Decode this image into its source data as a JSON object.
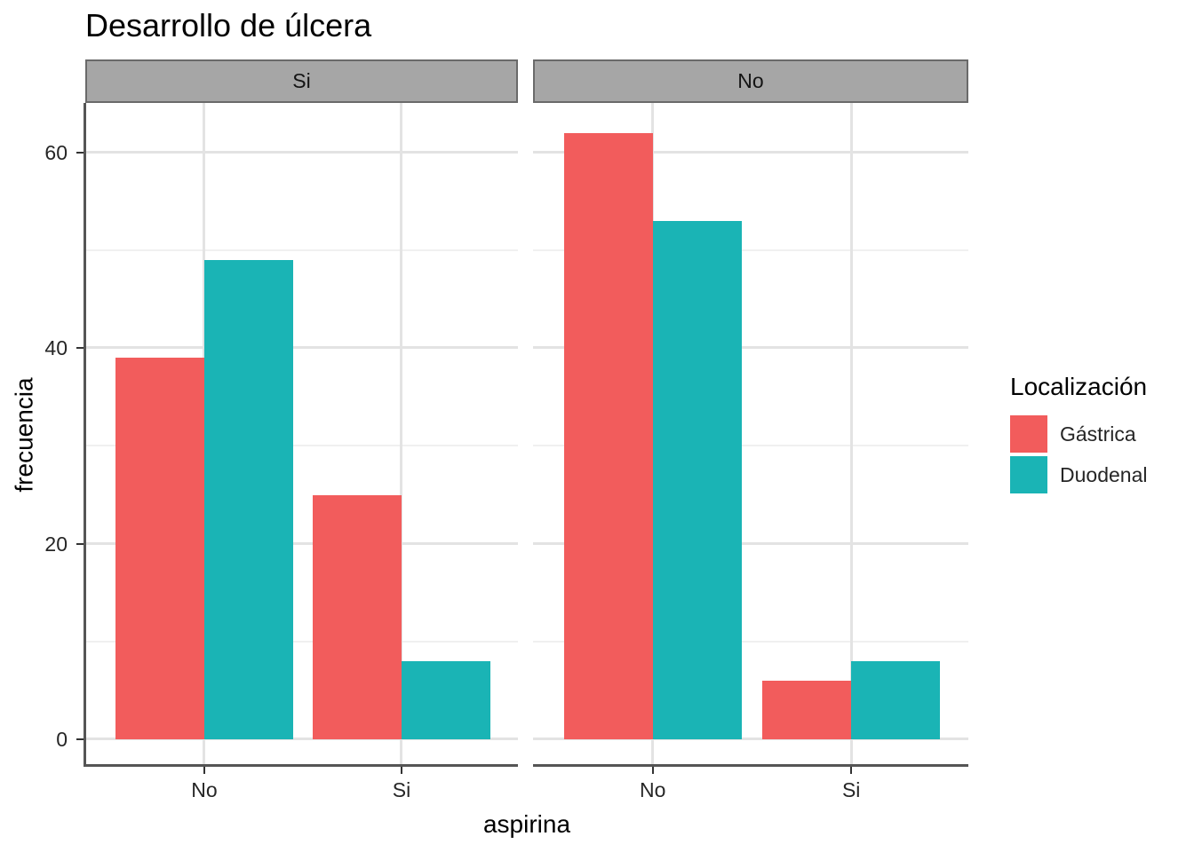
{
  "title": "Desarrollo de úlcera",
  "axes": {
    "x_title": "aspirina",
    "y_title": "frecuencia"
  },
  "legend": {
    "title": "Localización"
  },
  "colors": {
    "gastrica": "#F25C5C",
    "duodenal": "#1AB4B5",
    "strip_fill": "#A6A6A6",
    "strip_border": "#6A6A6A",
    "axis_line": "#555555",
    "grid_major": "#E3E3E3",
    "grid_minor": "#F0F0F0"
  },
  "chart_data": {
    "type": "bar",
    "mode": "grouped-dodged",
    "title": "Desarrollo de úlcera",
    "xlabel": "aspirina",
    "ylabel": "frecuencia",
    "legend_title": "Localización",
    "legend_position": "right",
    "grid": true,
    "facet_variable": "Desarrollo de úlcera",
    "categories": [
      "No",
      "Si"
    ],
    "y_ticks": [
      0,
      20,
      40,
      60
    ],
    "y_minor_ticks": [
      10,
      30,
      50
    ],
    "ylim": [
      0,
      65
    ],
    "series": [
      {
        "name": "Gástrica",
        "color": "#F25C5C"
      },
      {
        "name": "Duodenal",
        "color": "#1AB4B5"
      }
    ],
    "facets": [
      {
        "label": "Si",
        "values": [
          [
            39,
            25
          ],
          [
            49,
            8
          ]
        ]
      },
      {
        "label": "No",
        "values": [
          [
            62,
            6
          ],
          [
            53,
            8
          ]
        ]
      }
    ]
  }
}
